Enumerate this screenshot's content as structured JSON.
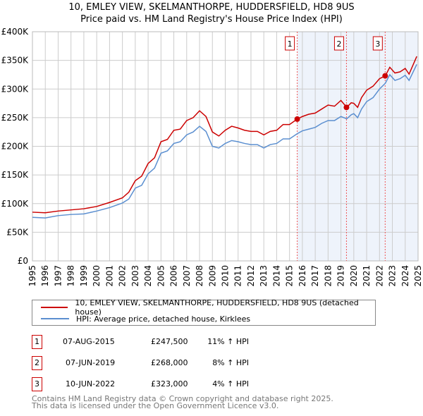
{
  "chart_data": {
    "type": "line",
    "title": "10, EMLEY VIEW, SKELMANTHORPE, HUDDERSFIELD, HD8 9US",
    "subtitle": "Price paid vs. HM Land Registry's House Price Index (HPI)",
    "xlim": [
      1995,
      2025
    ],
    "ylim": [
      0,
      400000
    ],
    "x_ticks": [
      "1995",
      "1996",
      "1997",
      "1998",
      "1999",
      "2000",
      "2001",
      "2002",
      "2003",
      "2004",
      "2005",
      "2006",
      "2007",
      "2008",
      "2009",
      "2010",
      "2011",
      "2012",
      "2013",
      "2014",
      "2015",
      "2016",
      "2017",
      "2018",
      "2019",
      "2020",
      "2021",
      "2022",
      "2023",
      "2024",
      "2025"
    ],
    "y_ticks": [
      {
        "v": 0,
        "label": "£0"
      },
      {
        "v": 50000,
        "label": "£50K"
      },
      {
        "v": 100000,
        "label": "£100K"
      },
      {
        "v": 150000,
        "label": "£150K"
      },
      {
        "v": 200000,
        "label": "£200K"
      },
      {
        "v": 250000,
        "label": "£250K"
      },
      {
        "v": 300000,
        "label": "£300K"
      },
      {
        "v": 350000,
        "label": "£350K"
      },
      {
        "v": 400000,
        "label": "£400K"
      }
    ],
    "grid": true,
    "shaded_from": 2015.6,
    "series": [
      {
        "name": "10, EMLEY VIEW, SKELMANTHORPE, HUDDERSFIELD, HD8 9US (detached house)",
        "color": "#cc0000",
        "x": [
          1995,
          1996,
          1997,
          1998,
          1999,
          2000,
          2001,
          2002,
          2002.5,
          2003,
          2003.5,
          2004,
          2004.5,
          2005,
          2005.5,
          2006,
          2006.5,
          2007,
          2007.5,
          2008,
          2008.5,
          2009,
          2009.5,
          2010,
          2010.5,
          2011,
          2011.5,
          2012,
          2012.5,
          2013,
          2013.5,
          2014,
          2014.5,
          2015,
          2015.6,
          2016,
          2016.5,
          2017,
          2017.5,
          2018,
          2018.5,
          2019,
          2019.45,
          2019.8,
          2020,
          2020.3,
          2020.6,
          2021,
          2021.5,
          2022,
          2022.45,
          2022.8,
          2023.2,
          2023.6,
          2024,
          2024.3,
          2024.9
        ],
        "y": [
          85,
          84,
          87,
          89,
          91,
          95,
          102,
          110,
          120,
          140,
          148,
          170,
          180,
          208,
          212,
          228,
          230,
          245,
          250,
          262,
          252,
          225,
          218,
          228,
          235,
          232,
          228,
          226,
          226,
          220,
          226,
          228,
          238,
          238,
          247.5,
          252,
          256,
          258,
          265,
          272,
          270,
          280,
          268,
          276,
          275,
          268,
          285,
          298,
          305,
          318,
          323,
          338,
          328,
          330,
          336,
          326,
          357
        ]
      },
      {
        "name": "HPI: Average price, detached house, Kirklees",
        "color": "#5b8fd0",
        "x": [
          1995,
          1996,
          1997,
          1998,
          1999,
          2000,
          2001,
          2002,
          2002.5,
          2003,
          2003.5,
          2004,
          2004.5,
          2005,
          2005.5,
          2006,
          2006.5,
          2007,
          2007.5,
          2008,
          2008.5,
          2009,
          2009.5,
          2010,
          2010.5,
          2011,
          2011.5,
          2012,
          2012.5,
          2013,
          2013.5,
          2014,
          2014.5,
          2015,
          2015.6,
          2016,
          2016.5,
          2017,
          2017.5,
          2018,
          2018.5,
          2019,
          2019.45,
          2019.8,
          2020,
          2020.3,
          2020.6,
          2021,
          2021.5,
          2022,
          2022.45,
          2022.8,
          2023.2,
          2023.6,
          2024,
          2024.3,
          2024.9
        ],
        "y": [
          76,
          75,
          79,
          81,
          82,
          87,
          93,
          101,
          108,
          127,
          132,
          152,
          162,
          188,
          192,
          205,
          208,
          220,
          225,
          235,
          226,
          200,
          197,
          205,
          210,
          208,
          205,
          203,
          203,
          197,
          203,
          205,
          213,
          213,
          222,
          227,
          230,
          233,
          240,
          245,
          245,
          252,
          248,
          255,
          257,
          250,
          265,
          278,
          285,
          300,
          310,
          325,
          315,
          318,
          324,
          315,
          343
        ]
      }
    ],
    "y_unit": "thousands GBP",
    "sales": [
      {
        "id": "1",
        "x": 2015.6,
        "price": 247500,
        "date": "07-AUG-2015",
        "price_label": "£247,500",
        "hpi": "11% ↑ HPI"
      },
      {
        "id": "2",
        "x": 2019.43,
        "price": 268000,
        "date": "07-JUN-2019",
        "price_label": "£268,000",
        "hpi": "8% ↑ HPI"
      },
      {
        "id": "3",
        "x": 2022.44,
        "price": 323000,
        "date": "10-JUN-2022",
        "price_label": "£323,000",
        "hpi": "4% ↑ HPI"
      }
    ]
  },
  "footer": {
    "line1": "Contains HM Land Registry data © Crown copyright and database right 2025.",
    "line2": "This data is licensed under the Open Government Licence v3.0."
  }
}
